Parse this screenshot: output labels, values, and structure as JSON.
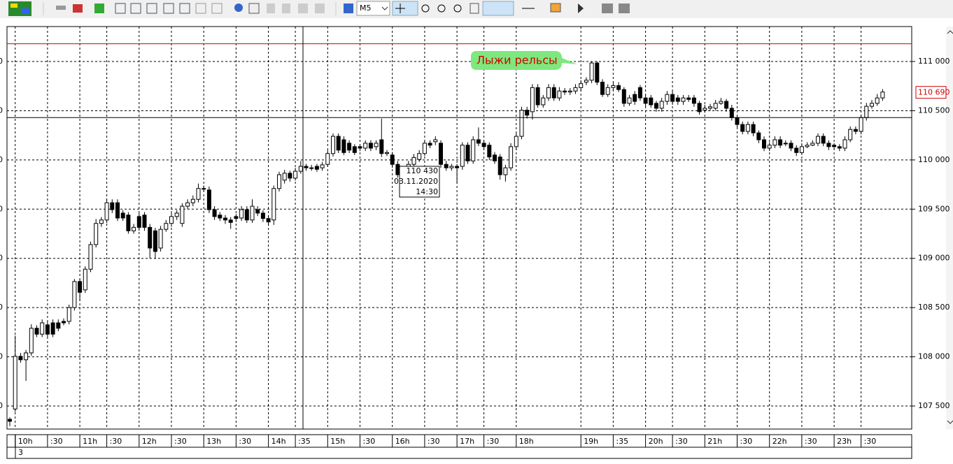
{
  "toolbar": {
    "timeframe": "M5"
  },
  "chart_data": {
    "type": "candlestick",
    "annotation": "Лыжи рельсы",
    "footer": "3",
    "up_color": "#ffffff",
    "down_color": "#000000",
    "grid": true,
    "ylim": [
      107266,
      111355
    ],
    "yticks": [
      {
        "value": 107500,
        "label": "107 500"
      },
      {
        "value": 108000,
        "label": "108 000"
      },
      {
        "value": 108500,
        "label": "108 500"
      },
      {
        "value": 109000,
        "label": "109 000"
      },
      {
        "value": 109500,
        "label": "109 500"
      },
      {
        "value": 110000,
        "label": "110 000"
      },
      {
        "value": 110500,
        "label": "110 500"
      },
      {
        "value": 111000,
        "label": "111 000"
      }
    ],
    "level_line": {
      "value": 111180,
      "color": "#d00000"
    },
    "current_price": {
      "value": 110690,
      "label": "110 690"
    },
    "crosshair": {
      "price": {
        "value": 110430,
        "label": "110 430"
      },
      "date": "03.11.2020",
      "time": "14:30"
    },
    "categories": [
      null,
      "10h",
      null,
      null,
      null,
      null,
      null,
      ":30",
      null,
      null,
      null,
      null,
      null,
      "11h",
      null,
      null,
      null,
      null,
      ":30",
      null,
      null,
      null,
      null,
      null,
      "12h",
      null,
      null,
      null,
      null,
      null,
      ":30",
      null,
      null,
      null,
      null,
      null,
      "13h",
      null,
      null,
      null,
      null,
      null,
      ":30",
      null,
      null,
      null,
      null,
      null,
      "14h",
      null,
      null,
      null,
      null,
      ":35",
      null,
      null,
      null,
      null,
      null,
      "15h",
      null,
      null,
      null,
      null,
      null,
      ":30",
      null,
      null,
      null,
      null,
      null,
      "16h",
      null,
      null,
      null,
      null,
      null,
      ":30",
      null,
      null,
      null,
      null,
      null,
      "17h",
      null,
      null,
      null,
      null,
      ":30",
      null,
      null,
      null,
      null,
      null,
      "18h",
      null,
      null,
      null,
      null,
      null,
      null,
      null,
      null,
      null,
      null,
      null,
      "19h",
      null,
      null,
      null,
      null,
      null,
      ":35",
      null,
      null,
      null,
      null,
      null,
      "20h",
      null,
      null,
      null,
      null,
      ":30",
      null,
      null,
      null,
      null,
      null,
      "21h",
      null,
      null,
      null,
      null,
      null,
      ":30",
      null,
      null,
      null,
      null,
      null,
      "22h",
      null,
      null,
      null,
      null,
      null,
      ":30",
      null,
      null,
      null,
      null,
      null,
      "23h",
      null,
      null,
      null,
      null,
      ":30",
      null,
      null,
      null,
      null
    ],
    "ohlc": [
      [
        107365,
        107385,
        107295,
        107345
      ],
      [
        107470,
        108215,
        107440,
        108005
      ],
      [
        108005,
        108040,
        107940,
        107970
      ],
      [
        107970,
        108070,
        107755,
        108040
      ],
      [
        108040,
        108330,
        108010,
        108290
      ],
      [
        108290,
        108320,
        108200,
        108230
      ],
      [
        108230,
        108380,
        108200,
        108345
      ],
      [
        108325,
        108360,
        108200,
        108230
      ],
      [
        108345,
        108380,
        108200,
        108230
      ],
      [
        108345,
        108380,
        108260,
        108290
      ],
      [
        108360,
        108390,
        108320,
        108345
      ],
      [
        108360,
        108530,
        108330,
        108500
      ],
      [
        108500,
        108790,
        108470,
        108765
      ],
      [
        108765,
        108790,
        108570,
        108655
      ],
      [
        108680,
        108920,
        108650,
        108890
      ],
      [
        108890,
        109170,
        108860,
        109140
      ],
      [
        109140,
        109400,
        109110,
        109355
      ],
      [
        109355,
        109420,
        109320,
        109390
      ],
      [
        109390,
        109600,
        109360,
        109565
      ],
      [
        109565,
        109600,
        109460,
        109495
      ],
      [
        109565,
        109600,
        109380,
        109410
      ],
      [
        109460,
        109490,
        109380,
        109410
      ],
      [
        109440,
        109470,
        109250,
        109280
      ],
      [
        109280,
        109350,
        109250,
        109315
      ],
      [
        109425,
        109460,
        109280,
        109315
      ],
      [
        109440,
        109470,
        109280,
        109315
      ],
      [
        109315,
        109350,
        109000,
        109105
      ],
      [
        109280,
        109310,
        108995,
        109070
      ],
      [
        109105,
        109330,
        109070,
        109295
      ],
      [
        109295,
        109390,
        109270,
        109355
      ],
      [
        109355,
        109460,
        109320,
        109425
      ],
      [
        109425,
        109490,
        109390,
        109460
      ],
      [
        109355,
        109560,
        109320,
        109530
      ],
      [
        109530,
        109600,
        109500,
        109565
      ],
      [
        109565,
        109640,
        109530,
        109600
      ],
      [
        109600,
        109760,
        109570,
        109710
      ],
      [
        109710,
        109740,
        109680,
        109705
      ],
      [
        109695,
        109730,
        109460,
        109495
      ],
      [
        109495,
        109530,
        109390,
        109425
      ],
      [
        109440,
        109470,
        109380,
        109410
      ],
      [
        109410,
        109440,
        109350,
        109390
      ],
      [
        109390,
        109420,
        109300,
        109365
      ],
      [
        109425,
        109450,
        109370,
        109405
      ],
      [
        109410,
        109530,
        109380,
        109495
      ],
      [
        109495,
        109530,
        109360,
        109390
      ],
      [
        109390,
        109600,
        109360,
        109530
      ],
      [
        109495,
        109530,
        109430,
        109460
      ],
      [
        109460,
        109490,
        109370,
        109405
      ],
      [
        109405,
        109440,
        109330,
        109370
      ],
      [
        109390,
        109740,
        109340,
        109710
      ],
      [
        109710,
        109880,
        109680,
        109850
      ],
      [
        109795,
        109900,
        109760,
        109865
      ],
      [
        109865,
        109890,
        109780,
        109815
      ],
      [
        109815,
        109920,
        109790,
        109885
      ],
      [
        109885,
        109990,
        109860,
        109935
      ],
      [
        109935,
        109960,
        109890,
        109920
      ],
      [
        109920,
        109950,
        109890,
        109920
      ],
      [
        109935,
        109960,
        109880,
        109905
      ],
      [
        109920,
        109980,
        109890,
        109950
      ],
      [
        109955,
        110100,
        109930,
        110065
      ],
      [
        110065,
        110270,
        110035,
        110240
      ],
      [
        110240,
        110270,
        110070,
        110100
      ],
      [
        110205,
        110240,
        110050,
        110075
      ],
      [
        110170,
        110200,
        110070,
        110100
      ],
      [
        110135,
        110160,
        110050,
        110075
      ],
      [
        110135,
        110160,
        110090,
        110120
      ],
      [
        110120,
        110200,
        110090,
        110170
      ],
      [
        110170,
        110200,
        110090,
        110120
      ],
      [
        110135,
        110200,
        110100,
        110170
      ],
      [
        110205,
        110420,
        110030,
        110065
      ],
      [
        110065,
        110100,
        110040,
        110075
      ],
      [
        110050,
        110080,
        109920,
        109955
      ],
      [
        109955,
        109990,
        109820,
        109850
      ],
      [
        109865,
        109910,
        109830,
        109885
      ],
      [
        109885,
        109990,
        109860,
        109955
      ],
      [
        109955,
        110060,
        109920,
        110025
      ],
      [
        110005,
        110100,
        109980,
        110065
      ],
      [
        110065,
        110200,
        110040,
        110170
      ],
      [
        110170,
        110200,
        110120,
        110150
      ],
      [
        110185,
        110240,
        110150,
        110205
      ],
      [
        110170,
        110200,
        109920,
        109955
      ],
      [
        109955,
        109990,
        109890,
        109920
      ],
      [
        109920,
        109960,
        109890,
        109935
      ],
      [
        109935,
        109960,
        109760,
        109920
      ],
      [
        109935,
        110180,
        109900,
        110150
      ],
      [
        110150,
        110180,
        109960,
        109990
      ],
      [
        109990,
        110240,
        109960,
        110205
      ],
      [
        110205,
        110330,
        110140,
        110170
      ],
      [
        110170,
        110200,
        110100,
        110135
      ],
      [
        110150,
        110180,
        110000,
        110030
      ],
      [
        110050,
        110080,
        109960,
        109990
      ],
      [
        110030,
        110060,
        109800,
        109850
      ],
      [
        109850,
        109950,
        109780,
        109920
      ],
      [
        109920,
        110170,
        109890,
        110135
      ],
      [
        110135,
        110270,
        110100,
        110240
      ],
      [
        110240,
        110540,
        110210,
        110505
      ],
      [
        110505,
        110540,
        110420,
        110455
      ],
      [
        110490,
        110770,
        110410,
        110735
      ],
      [
        110735,
        110770,
        110530,
        110560
      ],
      [
        110560,
        110660,
        110530,
        110630
      ],
      [
        110630,
        110770,
        110600,
        110735
      ],
      [
        110735,
        110770,
        110600,
        110630
      ],
      [
        110630,
        110740,
        110600,
        110700
      ],
      [
        110700,
        110730,
        110660,
        110690
      ],
      [
        110690,
        110730,
        110660,
        110700
      ],
      [
        110700,
        110770,
        110670,
        110735
      ],
      [
        110735,
        110810,
        110700,
        110775
      ],
      [
        110790,
        110840,
        110760,
        110810
      ],
      [
        110810,
        111000,
        110780,
        110985
      ],
      [
        110985,
        111000,
        110760,
        110790
      ],
      [
        110790,
        110820,
        110640,
        110665
      ],
      [
        110665,
        110770,
        110640,
        110735
      ],
      [
        110735,
        110790,
        110700,
        110755
      ],
      [
        110755,
        110790,
        110690,
        110715
      ],
      [
        110715,
        110740,
        110540,
        110575
      ],
      [
        110575,
        110660,
        110550,
        110630
      ],
      [
        110665,
        110700,
        110560,
        110595
      ],
      [
        110735,
        110760,
        110600,
        110630
      ],
      [
        110630,
        110660,
        110540,
        110575
      ],
      [
        110630,
        110660,
        110530,
        110560
      ],
      [
        110575,
        110600,
        110490,
        110525
      ],
      [
        110525,
        110630,
        110490,
        110595
      ],
      [
        110595,
        110700,
        110560,
        110665
      ],
      [
        110665,
        110700,
        110560,
        110595
      ],
      [
        110630,
        110660,
        110560,
        110595
      ],
      [
        110595,
        110660,
        110560,
        110630
      ],
      [
        110630,
        110660,
        110590,
        110615
      ],
      [
        110630,
        110660,
        110540,
        110575
      ],
      [
        110575,
        110600,
        110460,
        110490
      ],
      [
        110505,
        110560,
        110480,
        110525
      ],
      [
        110525,
        110570,
        110500,
        110540
      ],
      [
        110525,
        110610,
        110500,
        110575
      ],
      [
        110575,
        110630,
        110560,
        110595
      ],
      [
        110595,
        110620,
        110490,
        110525
      ],
      [
        110525,
        110560,
        110400,
        110430
      ],
      [
        110430,
        110460,
        110330,
        110360
      ],
      [
        110360,
        110390,
        110260,
        110290
      ],
      [
        110290,
        110390,
        110260,
        110360
      ],
      [
        110360,
        110390,
        110240,
        110275
      ],
      [
        110275,
        110300,
        110170,
        110205
      ],
      [
        110205,
        110240,
        110090,
        110120
      ],
      [
        110120,
        110180,
        110090,
        110150
      ],
      [
        110150,
        110240,
        110120,
        110205
      ],
      [
        110205,
        110240,
        110120,
        110150
      ],
      [
        110170,
        110200,
        110140,
        110170
      ],
      [
        110170,
        110200,
        110090,
        110120
      ],
      [
        110120,
        110150,
        110040,
        110075
      ],
      [
        110075,
        110170,
        110050,
        110135
      ],
      [
        110135,
        110180,
        110120,
        110150
      ],
      [
        110150,
        110200,
        110140,
        110170
      ],
      [
        110170,
        110270,
        110140,
        110240
      ],
      [
        110240,
        110270,
        110140,
        110170
      ],
      [
        110170,
        110200,
        110100,
        110135
      ],
      [
        110150,
        110170,
        110110,
        110135
      ],
      [
        110135,
        110160,
        110090,
        110120
      ],
      [
        110120,
        110240,
        110090,
        110205
      ],
      [
        110205,
        110340,
        110180,
        110310
      ],
      [
        110310,
        110340,
        110260,
        110290
      ],
      [
        110290,
        110460,
        110260,
        110430
      ],
      [
        110430,
        110580,
        110400,
        110545
      ],
      [
        110545,
        110610,
        110520,
        110575
      ],
      [
        110575,
        110670,
        110550,
        110630
      ],
      [
        110630,
        110720,
        110600,
        110690
      ]
    ]
  }
}
